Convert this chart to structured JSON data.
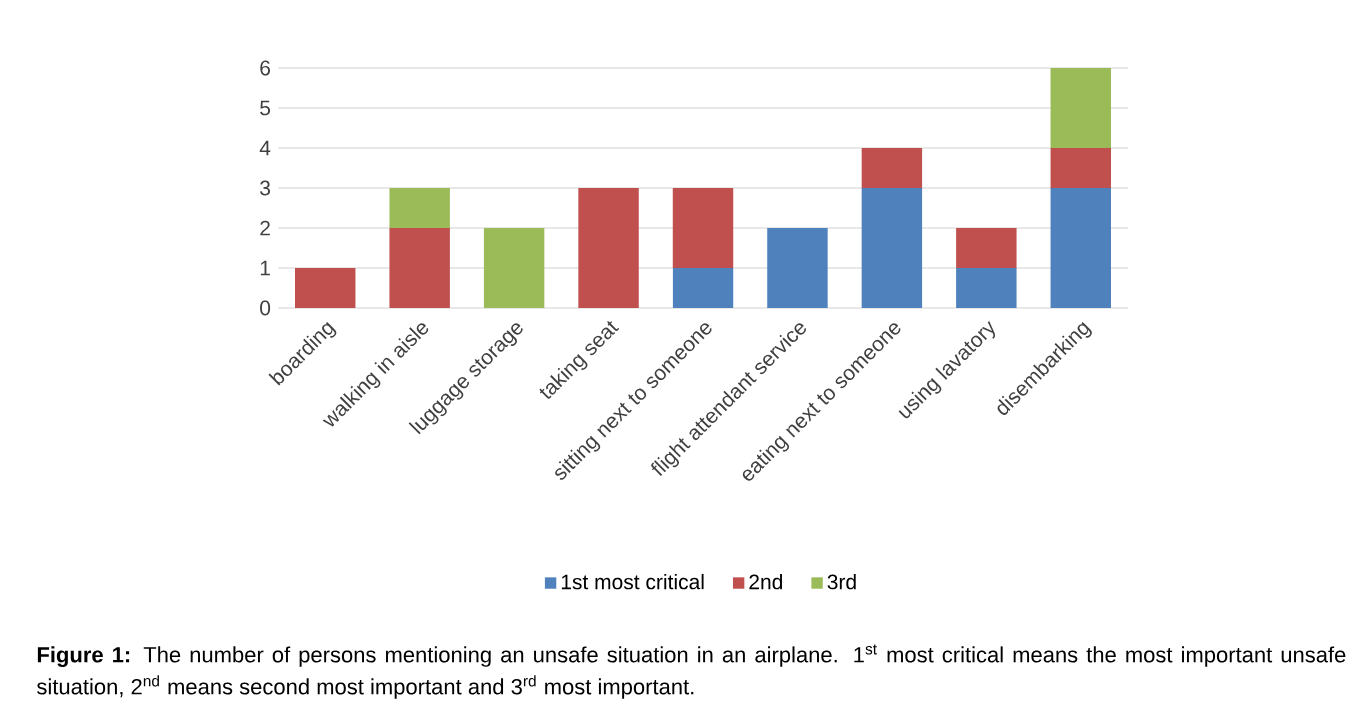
{
  "chart_data": {
    "type": "bar",
    "stacked": true,
    "categories": [
      "boarding",
      "walking in aisle",
      "luggage storage",
      "taking seat",
      "sitting next to someone",
      "flight attendant service",
      "eating next to someone",
      "using lavatory",
      "disembarking"
    ],
    "series": [
      {
        "name": "1st most critical",
        "color": "#4f81bd",
        "values": [
          0,
          0,
          0,
          0,
          1,
          2,
          3,
          1,
          3
        ]
      },
      {
        "name": "2nd",
        "color": "#c0504d",
        "values": [
          1,
          2,
          0,
          3,
          2,
          0,
          1,
          1,
          1
        ]
      },
      {
        "name": "3rd",
        "color": "#9bbb59",
        "values": [
          0,
          1,
          2,
          0,
          0,
          0,
          0,
          0,
          2
        ]
      }
    ],
    "ylim": [
      0,
      6
    ],
    "yticks": [
      0,
      1,
      2,
      3,
      4,
      5,
      6
    ],
    "grid": "y",
    "legend": "bottom",
    "annotations": [
      "**Figure 1:** The number of persons mentioning an unsafe situation in an airplane. 1$^{st}$ most critical means the most important unsafe situation, 2$^{nd}$ means second most important and 3$^{rd}$ most important."
    ]
  }
}
